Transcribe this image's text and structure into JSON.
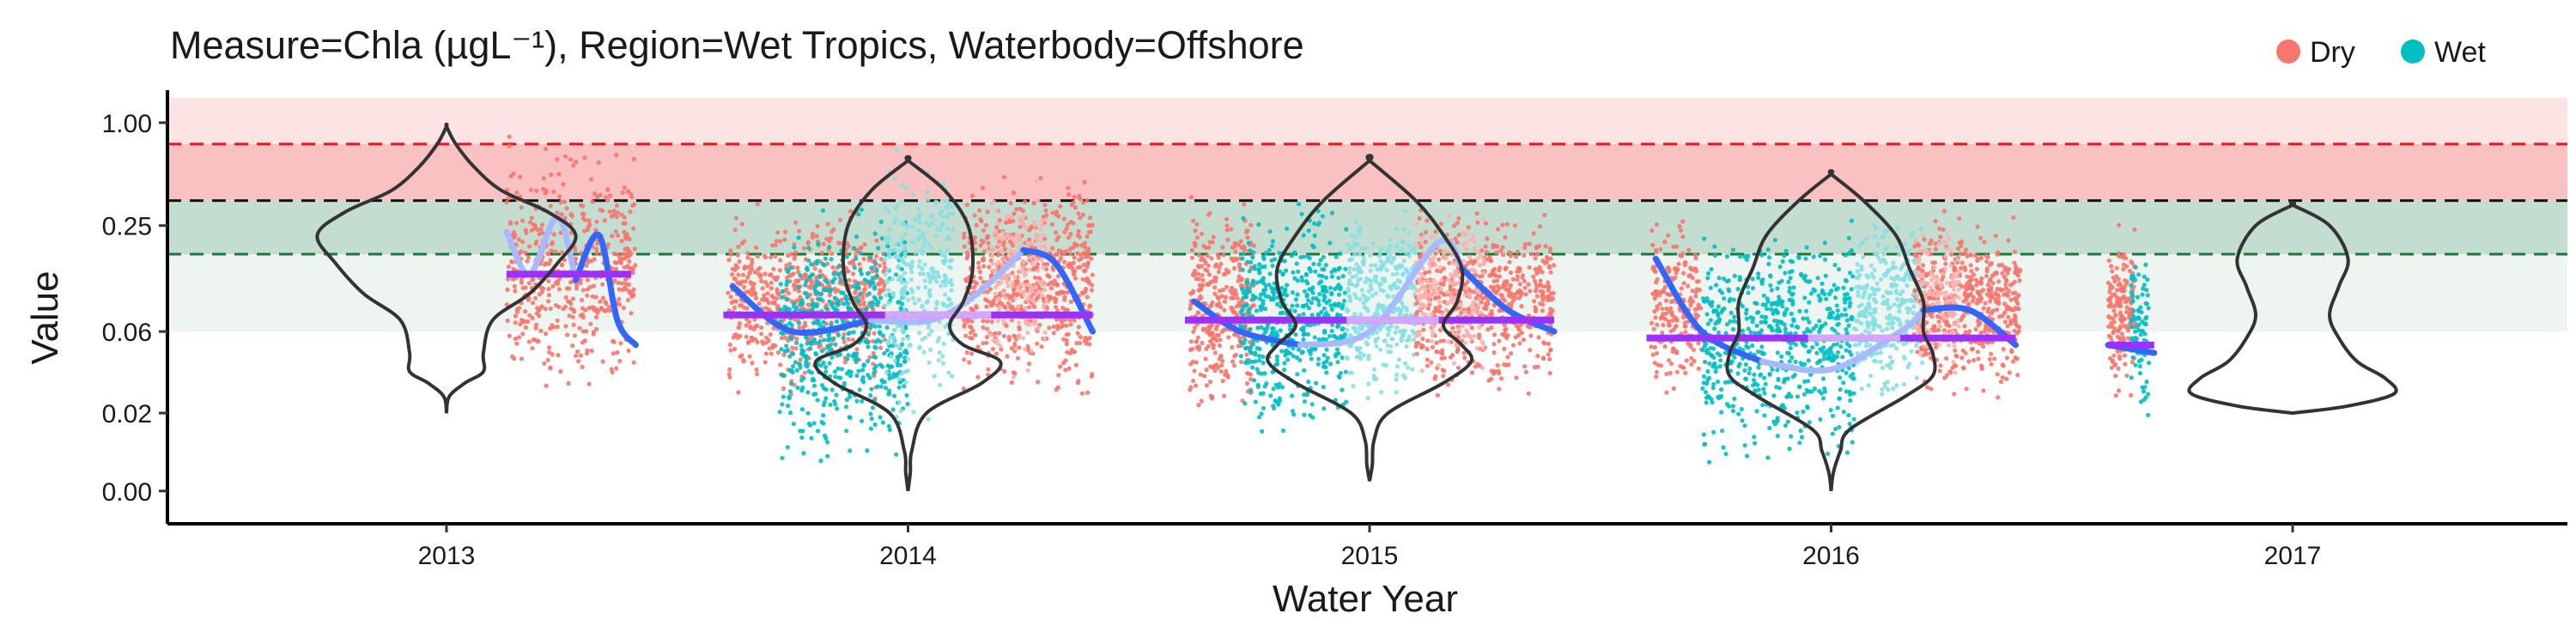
{
  "chart_data": {
    "type": "scatter",
    "title": "Measure=Chla (µgL⁻¹), Region=Wet Tropics, Waterbody=Offshore",
    "xlabel": "Water Year",
    "ylabel": "Value",
    "x_ticks": [
      "2013",
      "2014",
      "2015",
      "2016",
      "2017"
    ],
    "y_ticks": [
      "1.00",
      "0.25",
      "0.06",
      "0.02",
      "0.00"
    ],
    "y_scale": "log",
    "grid": false,
    "legend": {
      "position": "top-right",
      "entries": [
        {
          "name": "Dry",
          "color": "#F8766D"
        },
        {
          "name": "Wet",
          "color": "#00BFC4"
        }
      ]
    },
    "reference_lines": [
      {
        "value": 0.75,
        "color": "#E41A1C",
        "style": "dashed"
      },
      {
        "value": 0.35,
        "color": "#111111",
        "style": "dashed"
      },
      {
        "value": 0.17,
        "color": "#1B7837",
        "style": "dashed"
      }
    ],
    "bands": [
      {
        "from": 0.06,
        "to": 0.17,
        "color": "#EEF4F0"
      },
      {
        "from": 0.17,
        "to": 0.35,
        "color": "#C3DED0"
      },
      {
        "from": 0.35,
        "to": 0.75,
        "color": "#F9C1C1"
      },
      {
        "from": 0.75,
        "to": 1.4,
        "color": "#FCE4E4"
      }
    ],
    "series": [
      {
        "name": "Dry",
        "color": "#F8766D",
        "x": [
          2013.21,
          2013.26,
          2013.32,
          2013.38,
          2013.44,
          2013.9,
          2014.2,
          2014.3,
          2014.4,
          2014.55,
          2014.7,
          2014.8,
          2014.9,
          2014.95,
          2015.2,
          2015.3,
          2015.4,
          2015.5,
          2015.65,
          2015.75,
          2015.85,
          2016.2,
          2016.3,
          2016.4,
          2016.55,
          2016.6
        ],
        "y": [
          0.22,
          0.7,
          0.3,
          0.035,
          0.06,
          0.25,
          0.4,
          0.03,
          0.6,
          0.25,
          0.03,
          0.35,
          0.1,
          0.05,
          0.3,
          0.09,
          0.3,
          0.06,
          0.3,
          0.03,
          0.3,
          0.3,
          0.05,
          0.3,
          0.05,
          0.3
        ]
      },
      {
        "name": "Wet",
        "color": "#00BFC4",
        "x": [
          2013.9,
          2013.95,
          2014.0,
          2014.05,
          2014.1,
          2014.15,
          2014.2,
          2014.9,
          2014.95,
          2015.0,
          2015.05,
          2015.1,
          2015.9,
          2015.95,
          2016.0,
          2016.05,
          2016.1,
          2016.15,
          2016.2,
          2016.65,
          2016.68
        ],
        "y": [
          0.008,
          0.3,
          0.015,
          0.8,
          0.01,
          0.5,
          0.06,
          0.012,
          0.3,
          0.05,
          0.4,
          0.1,
          0.008,
          0.3,
          0.009,
          0.35,
          0.012,
          0.3,
          0.05,
          0.025,
          0.06
        ]
      }
    ],
    "smooth_trend": {
      "name": "Trend",
      "color": "#3366FF",
      "x": [
        2013.15,
        2013.25,
        2013.35,
        2013.45,
        2013.8,
        2014.0,
        2014.3,
        2014.5,
        2014.65,
        2014.8,
        2015.0,
        2015.2,
        2015.4,
        2015.65,
        2015.75,
        2016.0,
        2016.2,
        2016.4,
        2016.6
      ],
      "y": [
        0.25,
        0.15,
        0.12,
        0.05,
        0.08,
        0.05,
        0.08,
        0.12,
        0.07,
        0.08,
        0.05,
        0.07,
        0.06,
        0.15,
        0.04,
        0.035,
        0.06,
        0.07,
        0.05
      ]
    },
    "means": [
      {
        "x_from": 2013.13,
        "x_to": 2013.4,
        "y": 0.13
      },
      {
        "x_from": 2013.6,
        "x_to": 2014.4,
        "y": 0.075
      },
      {
        "x_from": 2014.6,
        "x_to": 2015.4,
        "y": 0.07
      },
      {
        "x_from": 2015.6,
        "x_to": 2016.4,
        "y": 0.055
      },
      {
        "x_from": 2016.6,
        "x_to": 2016.7,
        "y": 0.05
      }
    ],
    "violins": [
      {
        "center": 2013,
        "y_min": 0.02,
        "y_max": 0.95
      },
      {
        "center": 2014,
        "y_min": 0.007,
        "y_max": 0.6
      },
      {
        "center": 2015,
        "y_min": 0.008,
        "y_max": 0.6
      },
      {
        "center": 2016,
        "y_min": 0.007,
        "y_max": 0.5
      },
      {
        "center": 2017,
        "y_min": 0.02,
        "y_max": 0.33
      }
    ]
  }
}
